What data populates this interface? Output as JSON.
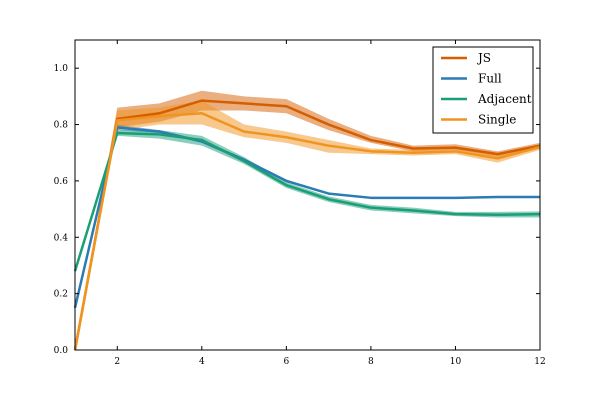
{
  "chart_data": {
    "type": "line",
    "title": "",
    "xlabel": "",
    "ylabel": "",
    "xlim": [
      1,
      12
    ],
    "ylim": [
      0.0,
      1.1
    ],
    "xticks": [
      2,
      4,
      6,
      8,
      10,
      12
    ],
    "yticks": [
      0.0,
      0.2,
      0.4,
      0.6,
      0.8,
      1.0
    ],
    "x_tick_labels": [
      "2",
      "4",
      "6",
      "8",
      "10",
      "12"
    ],
    "y_tick_labels": [
      "0.0",
      "0.2",
      "0.4",
      "0.6",
      "0.8",
      "1.0"
    ],
    "grid": false,
    "legend_position": "top-right",
    "x": [
      1,
      2,
      3,
      4,
      5,
      6,
      7,
      8,
      9,
      10,
      11,
      12
    ],
    "series": [
      {
        "name": "JS",
        "color": "#d55e00",
        "values": [
          0.0,
          0.82,
          0.84,
          0.885,
          0.875,
          0.865,
          0.8,
          0.745,
          0.715,
          0.718,
          0.695,
          0.725
        ],
        "lower": [
          0.0,
          0.79,
          0.81,
          0.85,
          0.85,
          0.84,
          0.78,
          0.735,
          0.705,
          0.71,
          0.685,
          0.715
        ],
        "upper": [
          0.0,
          0.86,
          0.875,
          0.92,
          0.9,
          0.89,
          0.82,
          0.76,
          0.725,
          0.73,
          0.705,
          0.735
        ]
      },
      {
        "name": "Full",
        "color": "#2b7bb5",
        "values": [
          0.15,
          0.79,
          0.775,
          0.74,
          0.675,
          0.6,
          0.555,
          0.54,
          0.54,
          0.54,
          0.543,
          0.543
        ],
        "lower": [
          0.15,
          0.78,
          0.77,
          0.735,
          0.67,
          0.595,
          0.552,
          0.538,
          0.538,
          0.538,
          0.541,
          0.541
        ],
        "upper": [
          0.15,
          0.8,
          0.78,
          0.745,
          0.68,
          0.605,
          0.558,
          0.542,
          0.542,
          0.542,
          0.545,
          0.545
        ]
      },
      {
        "name": "Adjacent",
        "color": "#1a9e78",
        "values": [
          0.28,
          0.77,
          0.765,
          0.745,
          0.67,
          0.585,
          0.535,
          0.505,
          0.495,
          0.482,
          0.48,
          0.482
        ],
        "lower": [
          0.28,
          0.76,
          0.75,
          0.725,
          0.66,
          0.575,
          0.525,
          0.495,
          0.485,
          0.475,
          0.47,
          0.47
        ],
        "upper": [
          0.28,
          0.78,
          0.78,
          0.76,
          0.685,
          0.595,
          0.545,
          0.515,
          0.505,
          0.49,
          0.49,
          0.492
        ]
      },
      {
        "name": "Single",
        "color": "#f0941f",
        "values": [
          0.0,
          0.815,
          0.83,
          0.84,
          0.775,
          0.755,
          0.725,
          0.705,
          0.7,
          0.705,
          0.68,
          0.72
        ],
        "lower": [
          0.0,
          0.78,
          0.8,
          0.8,
          0.755,
          0.735,
          0.7,
          0.695,
          0.69,
          0.695,
          0.665,
          0.71
        ],
        "upper": [
          0.0,
          0.85,
          0.86,
          0.885,
          0.8,
          0.775,
          0.745,
          0.715,
          0.71,
          0.715,
          0.695,
          0.73
        ]
      }
    ]
  }
}
